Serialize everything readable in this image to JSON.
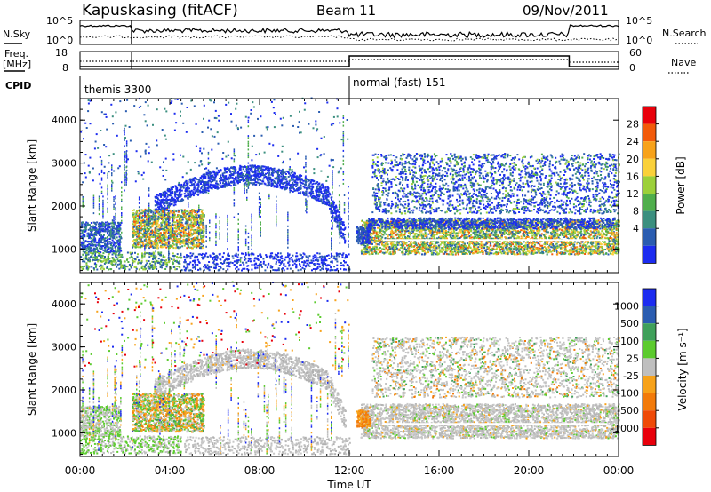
{
  "header": {
    "station": "Kapuskasing (fitACF)",
    "beam": "Beam 11",
    "date": "09/Nov/2011"
  },
  "strips": {
    "nsky_label": "N.Sky",
    "nsky_ticks": [
      "10^5",
      "10^0"
    ],
    "nsearch_label": "N.Search",
    "nsearch_ticks": [
      "10^5",
      "10^0"
    ],
    "freq_label_1": "Freq.",
    "freq_label_2": "[MHz]",
    "freq_ticks": [
      "18",
      "8"
    ],
    "nave_label": "Nave",
    "nave_ticks": [
      "60",
      "0"
    ],
    "cpid_label": "CPID",
    "cpid_segments": [
      {
        "label": "themis 3300",
        "start_hour": 0,
        "end_hour": 12
      },
      {
        "label": "normal (fast) 151",
        "start_hour": 12,
        "end_hour": 24
      }
    ]
  },
  "chart_data": [
    {
      "type": "heatmap",
      "name": "power-panel",
      "ylabel": "Slant Range [km]",
      "xlim": [
        0,
        24
      ],
      "ylim": [
        450,
        4500
      ],
      "yticks": [
        1000,
        2000,
        3000,
        4000
      ],
      "colorbar": {
        "label": "Power [dB]",
        "ticks": [
          "28",
          "24",
          "20",
          "16",
          "12",
          "8",
          "4"
        ],
        "colors": [
          "#e8000b",
          "#f25a0a",
          "#f7a21a",
          "#fad13a",
          "#9cd03a",
          "#4fae4c",
          "#3b8f7f",
          "#2a5cb0",
          "#1c2cf0"
        ]
      }
    },
    {
      "type": "heatmap",
      "name": "velocity-panel",
      "ylabel": "Slant Range [km]",
      "xlabel": "Time UT",
      "xlim": [
        0,
        24
      ],
      "ylim": [
        450,
        4500
      ],
      "yticks": [
        1000,
        2000,
        3000,
        4000
      ],
      "xticks": [
        "00:00",
        "04:00",
        "08:00",
        "12:00",
        "16:00",
        "20:00",
        "00:00"
      ],
      "colorbar": {
        "label": "Velocity [m s⁻¹]",
        "ticks": [
          "1000",
          "500",
          "100",
          "25",
          "-25",
          "-100",
          "-500",
          "-1000"
        ],
        "colors": [
          "#1c2cf0",
          "#2a5cb0",
          "#3fa05a",
          "#5ccb2e",
          "#bfbfbf",
          "#f7a21a",
          "#f27a0a",
          "#ef4a08",
          "#e8000b"
        ]
      }
    }
  ]
}
